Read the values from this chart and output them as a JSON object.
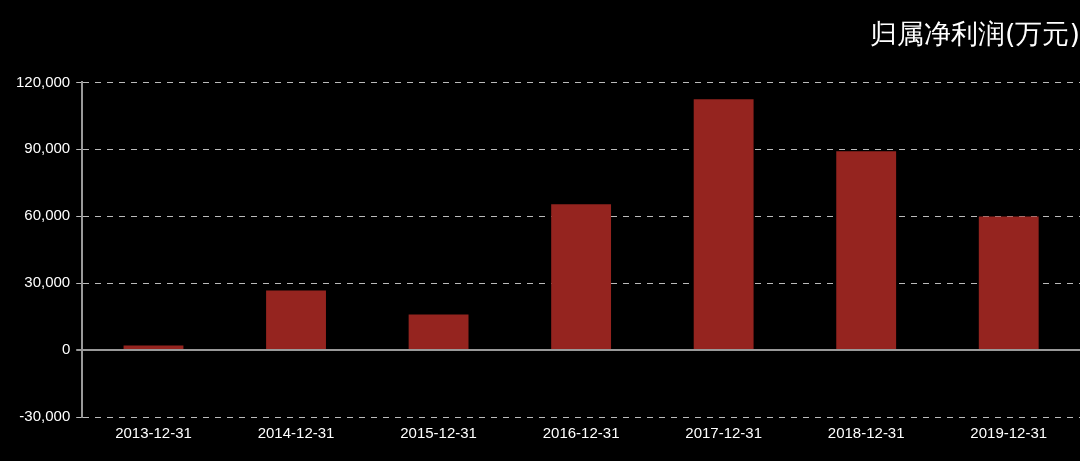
{
  "chart_data": {
    "type": "bar",
    "title": "归属净利润(万元)",
    "categories": [
      "2013-12-31",
      "2014-12-31",
      "2015-12-31",
      "2016-12-31",
      "2017-12-31",
      "2018-12-31",
      "2019-12-31"
    ],
    "values": [
      2000,
      26700,
      16000,
      65400,
      112400,
      89100,
      59900
    ],
    "color": "#95241f",
    "ylim": [
      -30000,
      120000
    ],
    "yticks": [
      {
        "value": -30000,
        "label": "-30,000"
      },
      0,
      {
        "value": 30000,
        "label": "30,000"
      },
      {
        "value": 60000,
        "label": "60,000"
      },
      {
        "value": 90000,
        "label": "90,000"
      },
      {
        "value": 120000,
        "label": "120,000"
      }
    ],
    "grid": "y"
  }
}
